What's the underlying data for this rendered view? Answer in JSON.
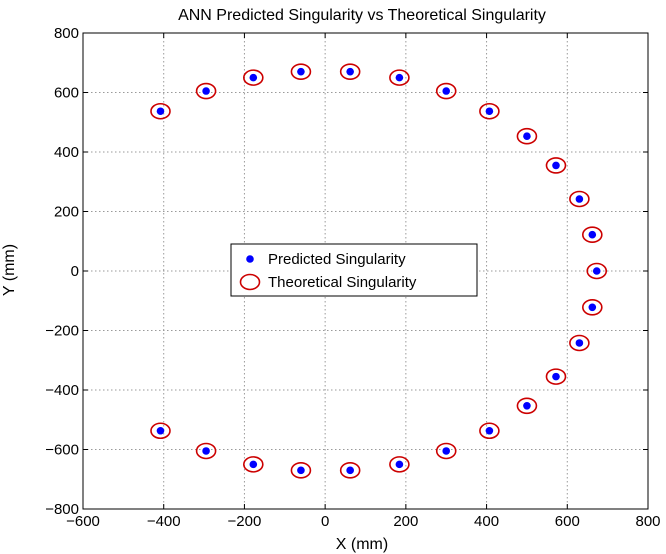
{
  "chart_data": {
    "type": "scatter",
    "title": "ANN Predicted Singularity vs Theoretical Singularity",
    "xlabel": "X (mm)",
    "ylabel": "Y (mm)",
    "xlim": [
      -600,
      800
    ],
    "ylim": [
      -800,
      800
    ],
    "xticks": [
      -600,
      -400,
      -200,
      0,
      200,
      400,
      600,
      800
    ],
    "yticks": [
      -800,
      -600,
      -400,
      -200,
      0,
      200,
      400,
      600,
      800
    ],
    "grid": true,
    "legend_position": "center",
    "series": [
      {
        "name": "Predicted Singularity",
        "marker": "filled-dot",
        "color": "#0000ff",
        "x": [
          -408,
          -295,
          -178,
          -60,
          62,
          184,
          300,
          407,
          500,
          572,
          630,
          662,
          673,
          662,
          630,
          572,
          500,
          407,
          300,
          184,
          62,
          -60,
          -178,
          -295,
          -408
        ],
        "y": [
          537,
          605,
          650,
          670,
          670,
          650,
          605,
          537,
          453,
          355,
          242,
          122,
          0,
          -122,
          -242,
          -355,
          -453,
          -537,
          -605,
          -650,
          -670,
          -670,
          -650,
          -605,
          -537
        ]
      },
      {
        "name": "Theoretical Singularity",
        "marker": "open-circle",
        "color": "#cc0000",
        "x": [
          -408,
          -295,
          -178,
          -60,
          62,
          184,
          300,
          407,
          500,
          572,
          630,
          662,
          673,
          662,
          630,
          572,
          500,
          407,
          300,
          184,
          62,
          -60,
          -178,
          -295,
          -408
        ],
        "y": [
          537,
          605,
          650,
          670,
          670,
          650,
          605,
          537,
          453,
          355,
          242,
          122,
          0,
          -122,
          -242,
          -355,
          -453,
          -537,
          -605,
          -650,
          -670,
          -670,
          -650,
          -605,
          -537
        ]
      }
    ]
  }
}
